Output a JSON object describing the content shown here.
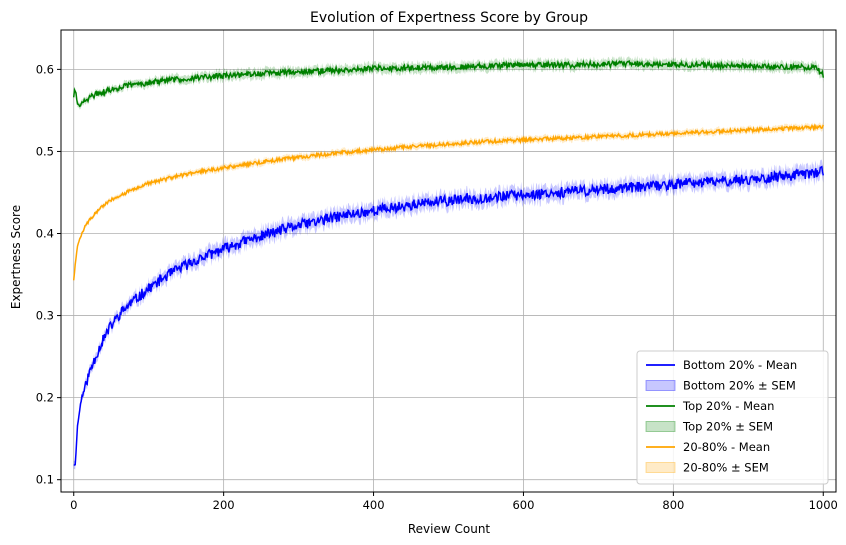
{
  "chart_data": {
    "type": "line",
    "title": "Evolution of Expertness Score by Group",
    "xlabel": "Review Count",
    "ylabel": "Expertness Score",
    "xlim": [
      -17,
      1017
    ],
    "ylim": [
      0.085,
      0.648
    ],
    "xticks": [
      0,
      200,
      400,
      600,
      800,
      1000
    ],
    "yticks": [
      0.1,
      0.2,
      0.3,
      0.4,
      0.5,
      0.6
    ],
    "grid": true,
    "legend_position": "lower right",
    "series": [
      {
        "name": "Bottom 20% - Mean",
        "band_name": "Bottom 20% ± SEM",
        "color": "#0000ff",
        "band_color": "#0000ff",
        "x": [
          0,
          2,
          5,
          8,
          10,
          15,
          20,
          30,
          40,
          50,
          60,
          70,
          80,
          100,
          120,
          140,
          160,
          180,
          200,
          220,
          250,
          280,
          300,
          330,
          360,
          400,
          430,
          460,
          500,
          540,
          580,
          600,
          640,
          680,
          720,
          760,
          800,
          850,
          900,
          950,
          980,
          1000
        ],
        "y": [
          0.118,
          0.118,
          0.165,
          0.185,
          0.198,
          0.212,
          0.228,
          0.252,
          0.272,
          0.288,
          0.3,
          0.31,
          0.318,
          0.333,
          0.346,
          0.357,
          0.366,
          0.374,
          0.381,
          0.388,
          0.397,
          0.405,
          0.41,
          0.416,
          0.422,
          0.428,
          0.432,
          0.436,
          0.44,
          0.443,
          0.446,
          0.447,
          0.45,
          0.452,
          0.455,
          0.457,
          0.46,
          0.463,
          0.466,
          0.47,
          0.473,
          0.476
        ],
        "sem": 0.009
      },
      {
        "name": "Top 20% - Mean",
        "band_name": "Top 20% ± SEM",
        "color": "#008000",
        "band_color": "#008000",
        "x": [
          0,
          1,
          3,
          5,
          8,
          12,
          20,
          30,
          50,
          70,
          100,
          150,
          200,
          250,
          300,
          350,
          400,
          450,
          500,
          550,
          600,
          650,
          700,
          750,
          800,
          850,
          900,
          950,
          990,
          1000
        ],
        "y": [
          0.566,
          0.575,
          0.571,
          0.557,
          0.556,
          0.56,
          0.565,
          0.57,
          0.575,
          0.58,
          0.584,
          0.589,
          0.592,
          0.595,
          0.597,
          0.599,
          0.601,
          0.602,
          0.603,
          0.604,
          0.606,
          0.605,
          0.606,
          0.607,
          0.606,
          0.605,
          0.604,
          0.603,
          0.602,
          0.593
        ],
        "sem": 0.006
      },
      {
        "name": "20-80% - Mean",
        "band_name": "20-80% ± SEM",
        "color": "#ffa500",
        "band_color": "#ffa500",
        "x": [
          0,
          2,
          5,
          10,
          15,
          20,
          30,
          40,
          50,
          60,
          80,
          100,
          130,
          160,
          200,
          250,
          300,
          350,
          400,
          450,
          500,
          550,
          600,
          650,
          700,
          750,
          800,
          850,
          900,
          950,
          1000
        ],
        "y": [
          0.343,
          0.362,
          0.385,
          0.398,
          0.408,
          0.415,
          0.426,
          0.434,
          0.441,
          0.446,
          0.454,
          0.461,
          0.468,
          0.474,
          0.48,
          0.487,
          0.493,
          0.498,
          0.502,
          0.506,
          0.509,
          0.512,
          0.514,
          0.516,
          0.518,
          0.52,
          0.522,
          0.524,
          0.526,
          0.528,
          0.53
        ],
        "sem": 0.004
      }
    ]
  }
}
